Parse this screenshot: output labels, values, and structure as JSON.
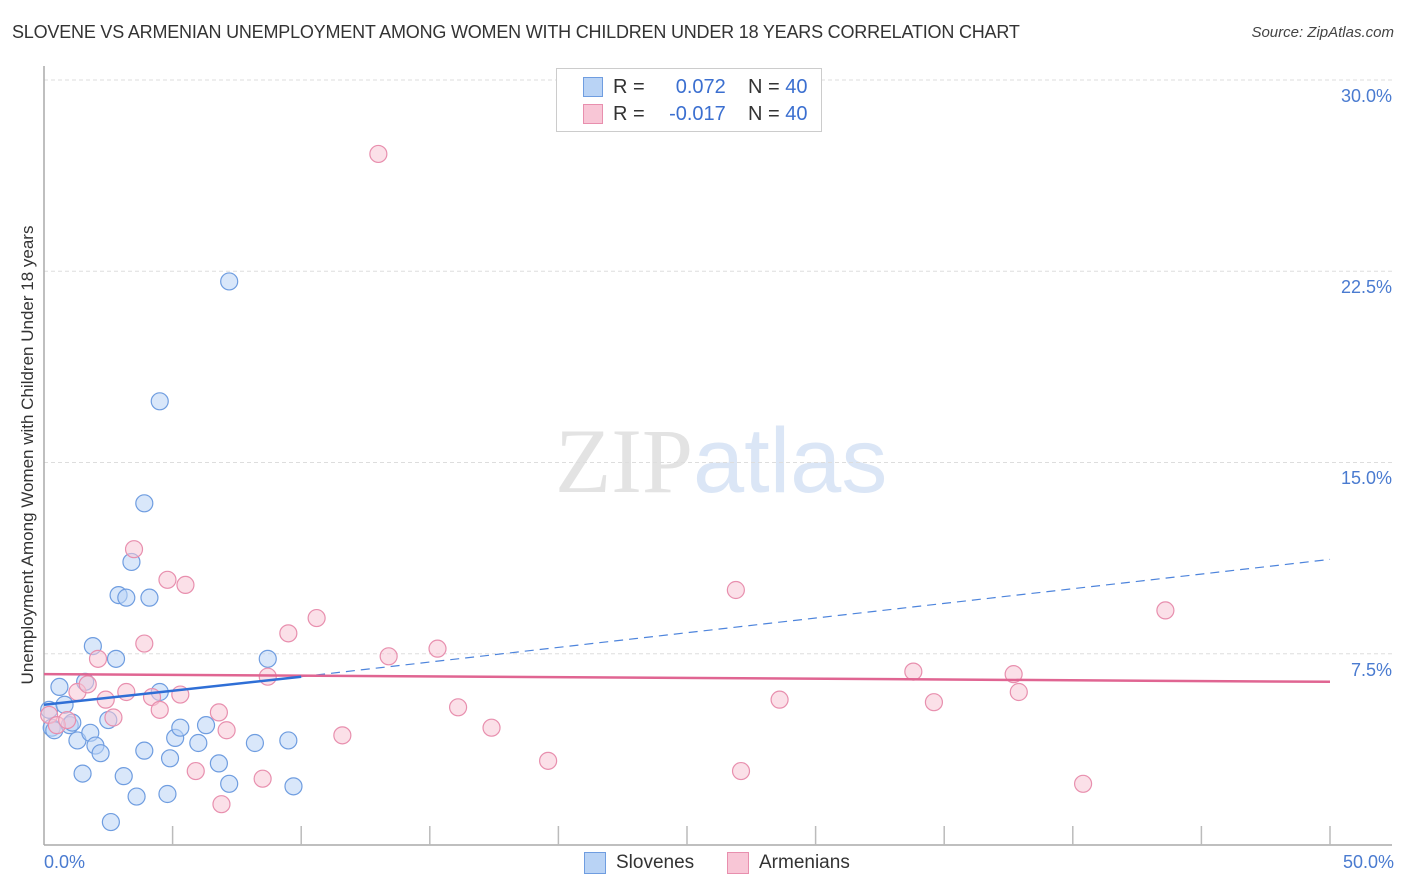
{
  "title": "SLOVENE VS ARMENIAN UNEMPLOYMENT AMONG WOMEN WITH CHILDREN UNDER 18 YEARS CORRELATION CHART",
  "source": "Source: ZipAtlas.com",
  "watermark": {
    "zip": "ZIP",
    "atlas": "atlas"
  },
  "legend": {
    "rows": [
      {
        "r_label": "R =",
        "r_value": "0.072",
        "n_label": "N =",
        "n_value": "40"
      },
      {
        "r_label": "R =",
        "r_value": "-0.017",
        "n_label": "N =",
        "n_value": "40"
      }
    ]
  },
  "bottom_legend": [
    {
      "label": "Slovenes"
    },
    {
      "label": "Armenians"
    }
  ],
  "colors": {
    "slovenes_fill": "#b9d3f5",
    "slovenes_stroke": "#6f9de0",
    "slovenes_line": "#2f6fd6",
    "armenians_fill": "#f8c6d6",
    "armenians_stroke": "#e88fae",
    "armenians_line": "#e06592",
    "tick_label": "#4a7bd0",
    "grid": "#dddddd"
  },
  "axes": {
    "y_label": "Unemployment Among Women with Children Under 18 years",
    "y_ticks": [
      "30.0%",
      "22.5%",
      "15.0%",
      "7.5%"
    ],
    "x_ticks": [
      "0.0%",
      "50.0%"
    ]
  },
  "chart_data": {
    "type": "scatter",
    "title": "SLOVENE VS ARMENIAN UNEMPLOYMENT AMONG WOMEN WITH CHILDREN UNDER 18 YEARS CORRELATION CHART",
    "xlabel": "",
    "ylabel": "Unemployment Among Women with Children Under 18 years",
    "xlim": [
      0,
      50
    ],
    "ylim": [
      0,
      30
    ],
    "x_tick_labels": [
      "0.0%",
      "50.0%"
    ],
    "y_tick_labels": [
      "7.5%",
      "15.0%",
      "22.5%",
      "30.0%"
    ],
    "grid": "horizontal dashed",
    "legend_position": "top-center",
    "series": [
      {
        "name": "Slovenes",
        "R": 0.072,
        "N": 40,
        "trend": {
          "x0": 0,
          "y0": 5.5,
          "x1": 10,
          "y1": 6.6,
          "dashed_extension_to": {
            "x": 50,
            "y": 11.2
          }
        },
        "points": [
          [
            0.2,
            5.3
          ],
          [
            0.3,
            4.6
          ],
          [
            0.4,
            4.5
          ],
          [
            0.6,
            6.2
          ],
          [
            0.8,
            5.5
          ],
          [
            1.0,
            4.7
          ],
          [
            1.1,
            4.8
          ],
          [
            1.3,
            4.1
          ],
          [
            1.5,
            2.8
          ],
          [
            1.6,
            6.4
          ],
          [
            1.8,
            4.4
          ],
          [
            1.9,
            7.8
          ],
          [
            2.0,
            3.9
          ],
          [
            2.2,
            3.6
          ],
          [
            2.5,
            4.9
          ],
          [
            2.8,
            7.3
          ],
          [
            2.9,
            9.8
          ],
          [
            3.1,
            2.7
          ],
          [
            3.2,
            9.7
          ],
          [
            3.4,
            11.1
          ],
          [
            3.6,
            1.9
          ],
          [
            3.9,
            3.7
          ],
          [
            3.9,
            13.4
          ],
          [
            4.1,
            9.7
          ],
          [
            4.5,
            6.0
          ],
          [
            4.5,
            17.4
          ],
          [
            4.8,
            2.0
          ],
          [
            4.9,
            3.4
          ],
          [
            5.1,
            4.2
          ],
          [
            5.3,
            4.6
          ],
          [
            6.0,
            4.0
          ],
          [
            6.3,
            4.7
          ],
          [
            6.8,
            3.2
          ],
          [
            7.2,
            2.4
          ],
          [
            7.2,
            22.1
          ],
          [
            8.2,
            4.0
          ],
          [
            8.7,
            7.3
          ],
          [
            9.5,
            4.1
          ],
          [
            9.7,
            2.3
          ],
          [
            2.6,
            0.9
          ]
        ]
      },
      {
        "name": "Armenians",
        "R": -0.017,
        "N": 40,
        "trend": {
          "x0": 0,
          "y0": 6.7,
          "x1": 50,
          "y1": 6.4
        },
        "points": [
          [
            0.2,
            5.1
          ],
          [
            0.5,
            4.7
          ],
          [
            0.9,
            4.9
          ],
          [
            1.3,
            6.0
          ],
          [
            1.7,
            6.3
          ],
          [
            2.1,
            7.3
          ],
          [
            2.4,
            5.7
          ],
          [
            2.7,
            5.0
          ],
          [
            3.2,
            6.0
          ],
          [
            3.5,
            11.6
          ],
          [
            3.9,
            7.9
          ],
          [
            4.2,
            5.8
          ],
          [
            4.5,
            5.3
          ],
          [
            4.8,
            10.4
          ],
          [
            5.3,
            5.9
          ],
          [
            5.5,
            10.2
          ],
          [
            5.9,
            2.9
          ],
          [
            6.8,
            5.2
          ],
          [
            6.9,
            1.6
          ],
          [
            7.1,
            4.5
          ],
          [
            8.5,
            2.6
          ],
          [
            8.7,
            6.6
          ],
          [
            9.5,
            8.3
          ],
          [
            10.6,
            8.9
          ],
          [
            11.6,
            4.3
          ],
          [
            13.0,
            27.1
          ],
          [
            13.4,
            7.4
          ],
          [
            15.3,
            7.7
          ],
          [
            16.1,
            5.4
          ],
          [
            17.4,
            4.6
          ],
          [
            19.6,
            3.3
          ],
          [
            26.9,
            10.0
          ],
          [
            27.1,
            2.9
          ],
          [
            28.6,
            5.7
          ],
          [
            33.8,
            6.8
          ],
          [
            34.6,
            5.6
          ],
          [
            37.7,
            6.7
          ],
          [
            37.9,
            6.0
          ],
          [
            40.4,
            2.4
          ],
          [
            43.6,
            9.2
          ]
        ]
      }
    ]
  }
}
